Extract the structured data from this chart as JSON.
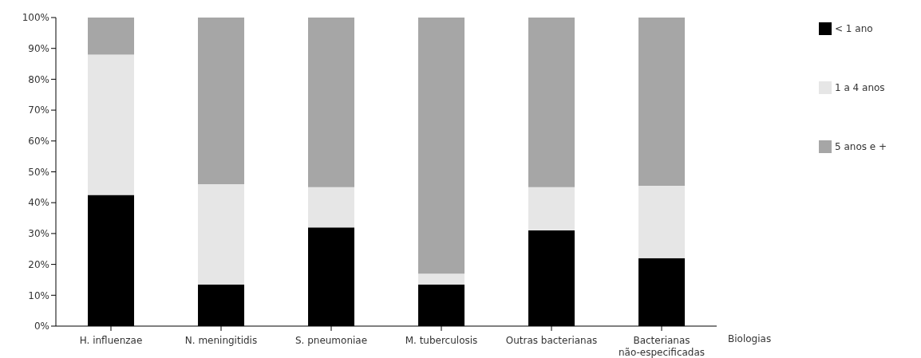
{
  "chart_data": {
    "type": "bar",
    "stacked": true,
    "xlabel": "Biologias",
    "categories": [
      "H. influenzae",
      "N. meningitidis",
      "S. pneumoniae",
      "M. tuberculosis",
      "Outras bacterianas",
      "Bacterianas não-especificadas"
    ],
    "series": [
      {
        "name": "< 1 ano",
        "color": "#000000",
        "values": [
          42.5,
          13.5,
          32,
          13.5,
          31,
          22
        ]
      },
      {
        "name": "1 a 4 anos",
        "color": "#e6e6e6",
        "values": [
          45.5,
          32.5,
          13,
          3.5,
          14,
          23.5
        ]
      },
      {
        "name": "5 anos e +",
        "color": "#a6a6a6",
        "values": [
          12,
          54,
          55,
          83,
          55,
          54.5
        ]
      }
    ],
    "ylim": [
      0,
      100
    ],
    "yticks": [
      {
        "value": 0,
        "label": "0%"
      },
      {
        "value": 10,
        "label": "10%"
      },
      {
        "value": 20,
        "label": "20%"
      },
      {
        "value": 30,
        "label": "30%"
      },
      {
        "value": 40,
        "label": "40%"
      },
      {
        "value": 50,
        "label": "50%"
      },
      {
        "value": 60,
        "label": "60%"
      },
      {
        "value": 70,
        "label": "70%"
      },
      {
        "value": 80,
        "label": "80%"
      },
      {
        "value": 90,
        "label": "90%"
      },
      {
        "value": 100,
        "label": "100%"
      }
    ],
    "legend": "top right",
    "grid": false
  }
}
